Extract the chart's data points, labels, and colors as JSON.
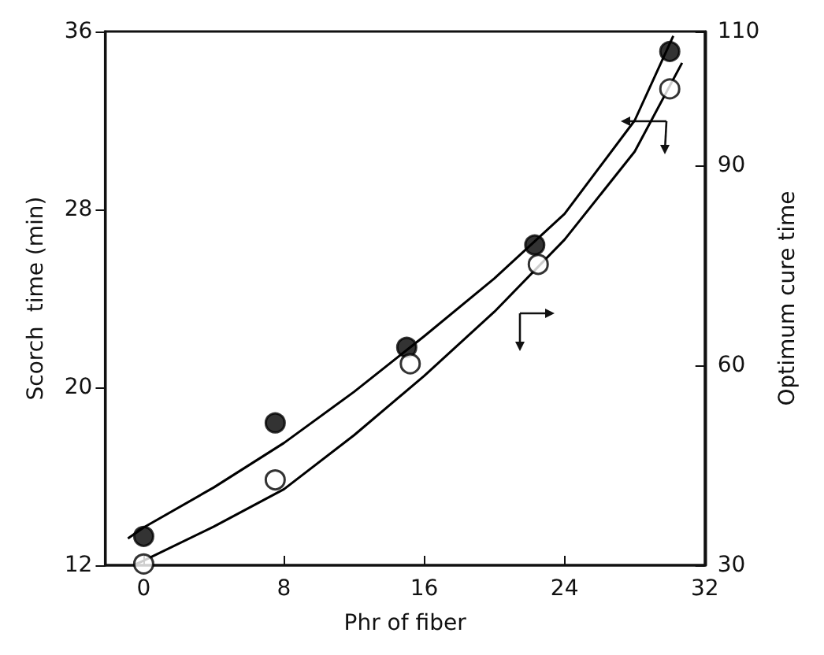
{
  "chart_data": {
    "type": "scatter",
    "xlabel": "Phr of fiber",
    "ylabel": "Scorch  time (min)",
    "y2label": "Optimum cure time",
    "xlim": [
      -2.2,
      32
    ],
    "xticks": [
      0,
      8,
      16,
      24,
      32
    ],
    "ylim": [
      12,
      36
    ],
    "yticks": [
      12,
      20,
      28,
      36
    ],
    "y2lim": [
      30,
      110
    ],
    "y2ticks": [
      30,
      60,
      90,
      110
    ],
    "marker": "circle",
    "series": [
      {
        "color": "#000000",
        "x": [
          0,
          7.5,
          15,
          22.3,
          30
        ],
        "values": [
          13.3,
          18.4,
          21.8,
          26.4,
          35.1
        ]
      },
      {
        "type": "line",
        "color": "#000000",
        "marker": "none",
        "x": [
          -0.9,
          0,
          4,
          8,
          12,
          16,
          20,
          24,
          28,
          30.2
        ],
        "values": [
          13.2,
          13.7,
          15.5,
          17.5,
          19.8,
          22.3,
          24.9,
          27.8,
          32.0,
          35.8
        ]
      },
      {
        "axis": "y2",
        "color": "#ffffff",
        "x": [
          0,
          7.5,
          15.2,
          22.5,
          30
        ],
        "values": [
          30.2,
          42.8,
          60.2,
          75.1,
          101.4
        ]
      },
      {
        "type": "line",
        "axis": "y2",
        "color": "#000000",
        "marker": "none",
        "x": [
          -0.5,
          0,
          4,
          8,
          12,
          16,
          20,
          24,
          28,
          30.7
        ],
        "values": [
          30.1,
          30.7,
          35.8,
          41.4,
          49.5,
          58.4,
          68.0,
          78.8,
          92.0,
          105.3
        ]
      }
    ]
  }
}
